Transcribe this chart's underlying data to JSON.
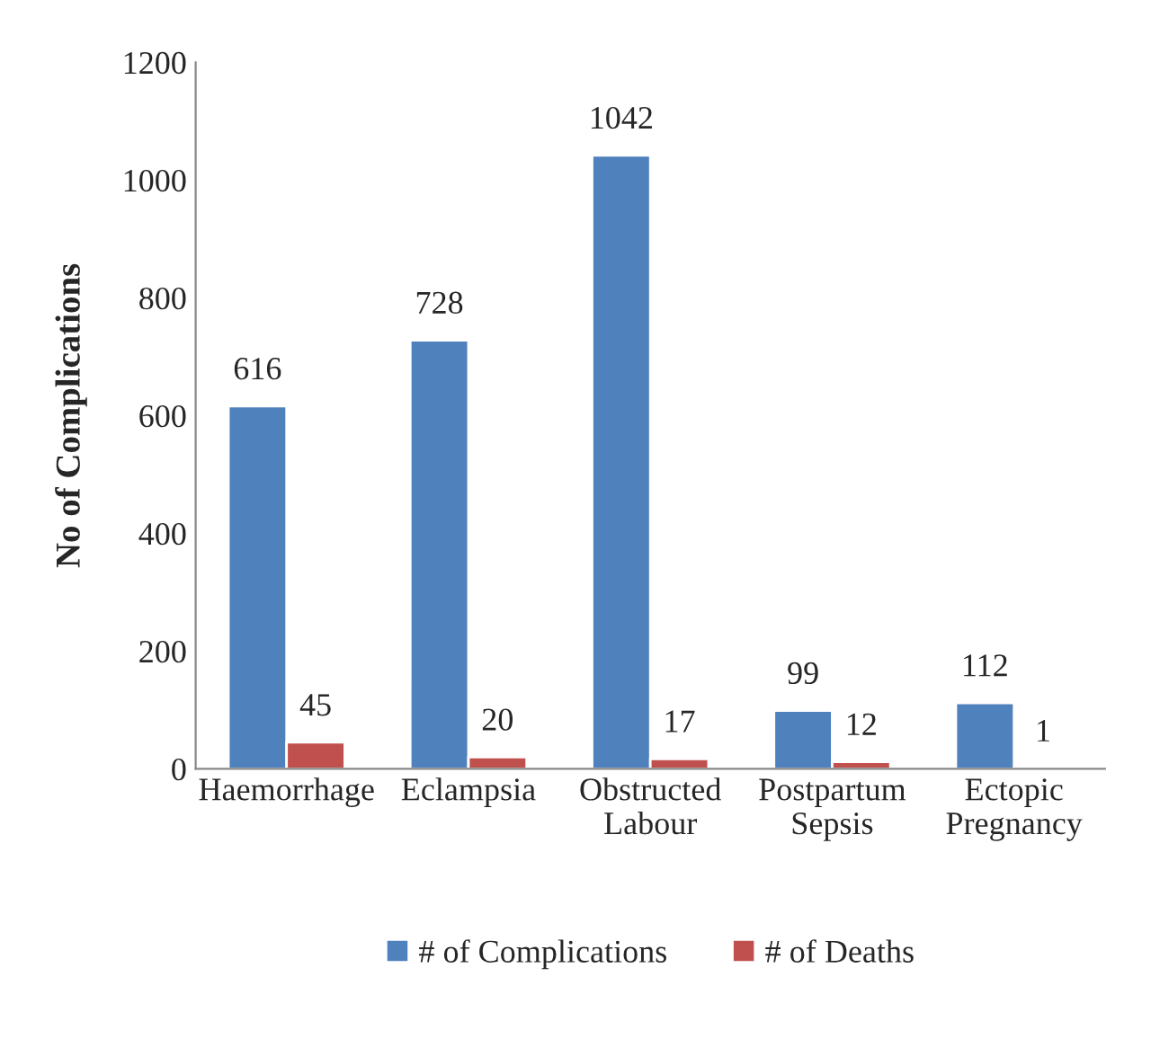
{
  "chart_data": {
    "type": "bar",
    "ylabel": "No of Complications",
    "categories": [
      "Haemorrhage",
      "Eclampsia",
      "Obstructed\nLabour",
      "Postpartum\nSepsis",
      "Ectopic\nPregnancy"
    ],
    "series": [
      {
        "name": "# of Complications",
        "color": "#4f81bd",
        "values": [
          616,
          728,
          1042,
          99,
          112
        ]
      },
      {
        "name": "# of Deaths",
        "color": "#c0504d",
        "values": [
          45,
          20,
          17,
          12,
          1
        ]
      }
    ],
    "ylim": [
      0,
      1200
    ],
    "yticks": [
      0,
      200,
      400,
      600,
      800,
      1000,
      1200
    ],
    "grid": false,
    "legend": "bottom",
    "data_labels": true
  }
}
